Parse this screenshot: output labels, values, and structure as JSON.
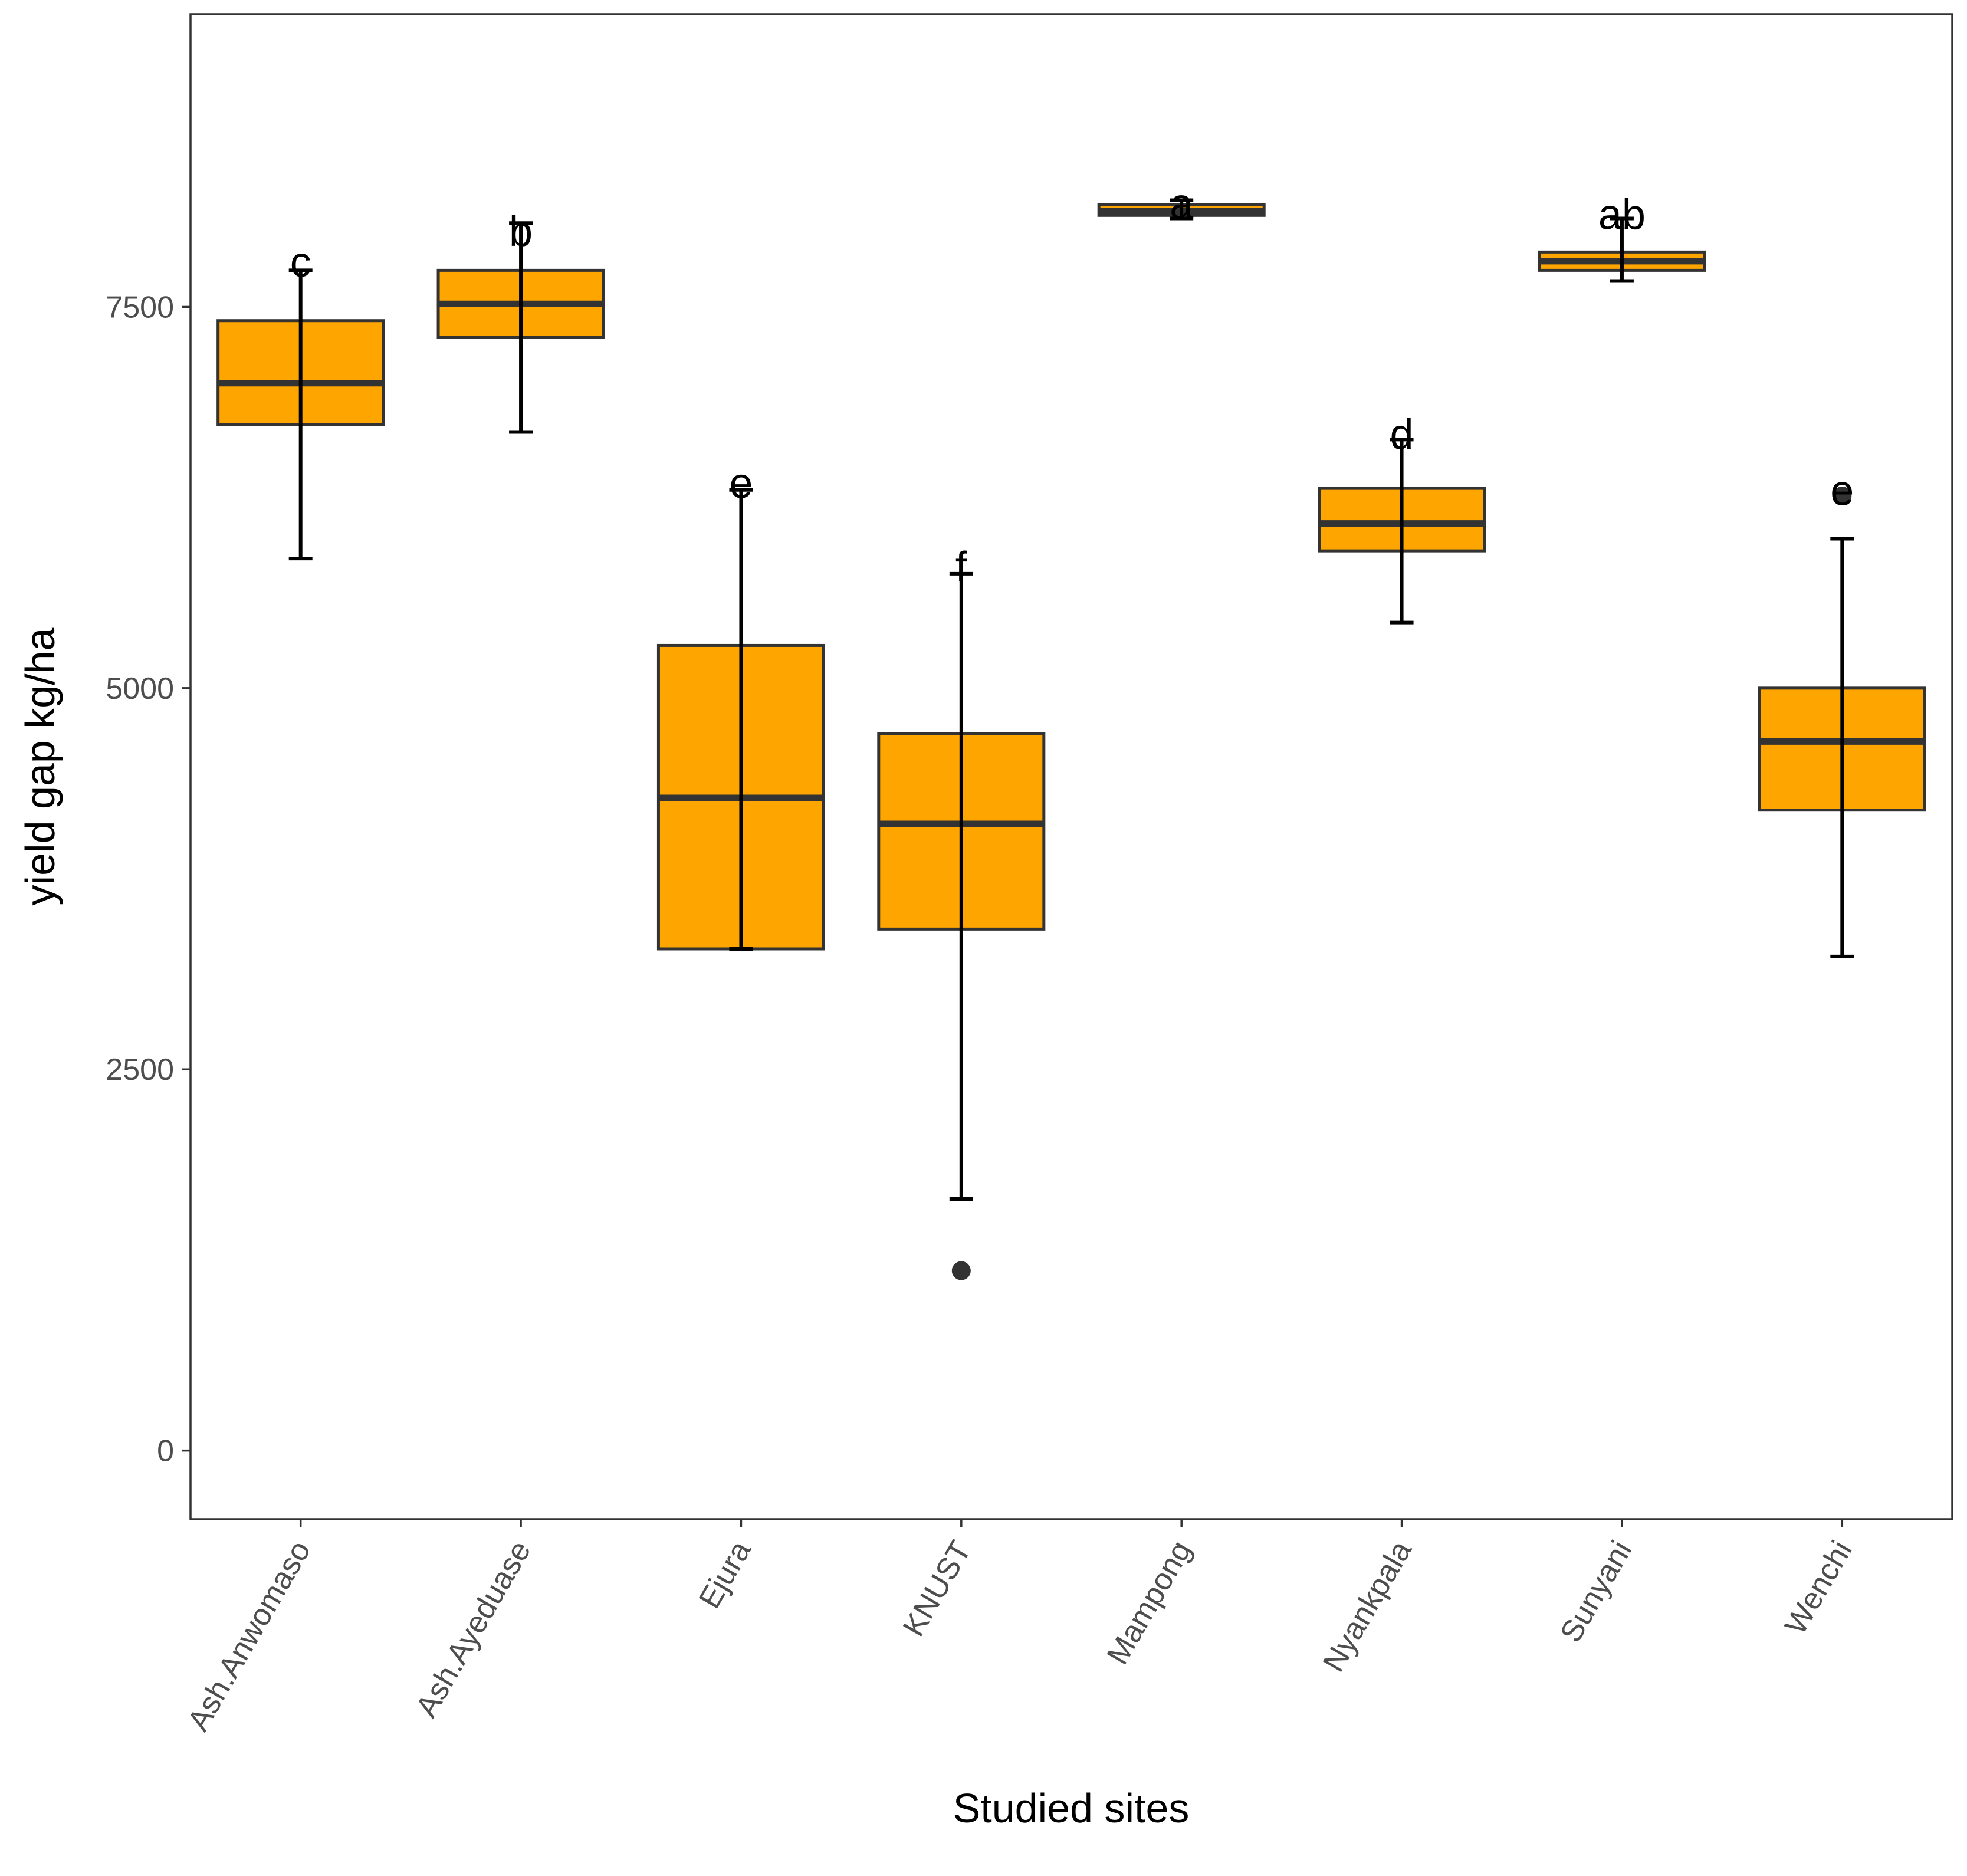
{
  "chart_data": {
    "type": "boxplot",
    "xlabel": "Studied sites",
    "ylabel": "yield gap kg/ha",
    "ylim": [
      -450,
      9420
    ],
    "yticks": [
      0,
      2500,
      5000,
      7500
    ],
    "grid": false,
    "box_fill": "#FFA500",
    "box_stroke": "#333333",
    "errorbar_color": "#000000",
    "categories": [
      "Ash.Anwomaso",
      "Ash.Ayeduase",
      "Ejura",
      "KNUST",
      "Mampong",
      "Nyankpala",
      "Sunyani",
      "Wenchi"
    ],
    "boxes": [
      {
        "site": "Ash.Anwomaso",
        "q1": 6730,
        "median": 7000,
        "q3": 7410,
        "err_low": 5850,
        "err_high": 7740,
        "outliers": [],
        "letter": "c",
        "letter_y": 7800
      },
      {
        "site": "Ash.Ayeduase",
        "q1": 7300,
        "median": 7520,
        "q3": 7740,
        "err_low": 6680,
        "err_high": 8050,
        "outliers": [],
        "letter": "b",
        "letter_y": 8000
      },
      {
        "site": "Ejura",
        "q1": 3290,
        "median": 4280,
        "q3": 5280,
        "err_low": 3290,
        "err_high": 6300,
        "outliers": [],
        "letter": "e",
        "letter_y": 6350
      },
      {
        "site": "KNUST",
        "q1": 3420,
        "median": 4110,
        "q3": 4700,
        "err_low": 1650,
        "err_high": 5750,
        "outliers": [
          1180
        ],
        "letter": "f",
        "letter_y": 5800
      },
      {
        "site": "Mampong",
        "q1": 8100,
        "median": 8130,
        "q3": 8170,
        "err_low": 8080,
        "err_high": 8200,
        "outliers": [],
        "letter": "a",
        "letter_y": 8180
      },
      {
        "site": "Nyankpala",
        "q1": 5900,
        "median": 6080,
        "q3": 6310,
        "err_low": 5430,
        "err_high": 6630,
        "outliers": [],
        "letter": "d",
        "letter_y": 6670
      },
      {
        "site": "Sunyani",
        "q1": 7740,
        "median": 7800,
        "q3": 7860,
        "err_low": 7670,
        "err_high": 8080,
        "outliers": [],
        "letter": "ab",
        "letter_y": 8110
      },
      {
        "site": "Wenchi",
        "q1": 4200,
        "median": 4650,
        "q3": 5000,
        "err_low": 3240,
        "err_high": 5980,
        "outliers": [
          6260
        ],
        "letter": "e",
        "letter_y": 6300
      }
    ]
  }
}
